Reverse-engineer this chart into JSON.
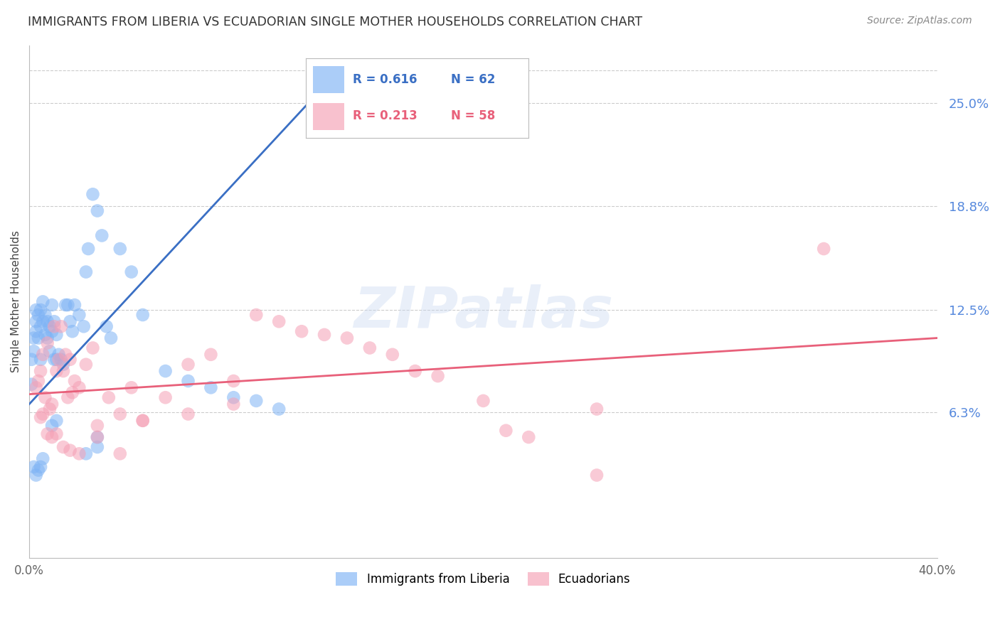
{
  "title": "IMMIGRANTS FROM LIBERIA VS ECUADORIAN SINGLE MOTHER HOUSEHOLDS CORRELATION CHART",
  "source": "Source: ZipAtlas.com",
  "ylabel": "Single Mother Households",
  "ytick_labels": [
    "25.0%",
    "18.8%",
    "12.5%",
    "6.3%"
  ],
  "ytick_values": [
    0.25,
    0.188,
    0.125,
    0.063
  ],
  "xlim": [
    0.0,
    0.4
  ],
  "ylim": [
    -0.025,
    0.285
  ],
  "legend_blue_R": "0.616",
  "legend_blue_N": "62",
  "legend_pink_R": "0.213",
  "legend_pink_N": "58",
  "blue_color": "#7EB3F5",
  "pink_color": "#F5A0B5",
  "blue_line_color": "#3A6FC4",
  "pink_line_color": "#E8607A",
  "blue_line": {
    "x0": 0.0,
    "y0": 0.068,
    "x1": 0.135,
    "y1": 0.268
  },
  "pink_line": {
    "x0": 0.0,
    "y0": 0.074,
    "x1": 0.4,
    "y1": 0.108
  },
  "blue_scatter": {
    "x": [
      0.001,
      0.001,
      0.002,
      0.002,
      0.003,
      0.003,
      0.003,
      0.004,
      0.004,
      0.005,
      0.005,
      0.005,
      0.006,
      0.006,
      0.007,
      0.007,
      0.008,
      0.008,
      0.009,
      0.009,
      0.01,
      0.01,
      0.011,
      0.011,
      0.012,
      0.012,
      0.013,
      0.014,
      0.015,
      0.016,
      0.017,
      0.018,
      0.019,
      0.02,
      0.022,
      0.024,
      0.025,
      0.026,
      0.028,
      0.03,
      0.03,
      0.032,
      0.034,
      0.036,
      0.04,
      0.045,
      0.05,
      0.06,
      0.07,
      0.08,
      0.09,
      0.1,
      0.11,
      0.002,
      0.003,
      0.004,
      0.005,
      0.006,
      0.01,
      0.012,
      0.025,
      0.03
    ],
    "y": [
      0.08,
      0.095,
      0.1,
      0.108,
      0.112,
      0.118,
      0.125,
      0.108,
      0.122,
      0.095,
      0.115,
      0.125,
      0.118,
      0.13,
      0.11,
      0.122,
      0.108,
      0.118,
      0.1,
      0.115,
      0.112,
      0.128,
      0.095,
      0.118,
      0.095,
      0.11,
      0.098,
      0.095,
      0.092,
      0.128,
      0.128,
      0.118,
      0.112,
      0.128,
      0.122,
      0.115,
      0.148,
      0.162,
      0.195,
      0.185,
      0.048,
      0.17,
      0.115,
      0.108,
      0.162,
      0.148,
      0.122,
      0.088,
      0.082,
      0.078,
      0.072,
      0.07,
      0.065,
      0.03,
      0.025,
      0.028,
      0.03,
      0.035,
      0.055,
      0.058,
      0.038,
      0.042
    ]
  },
  "pink_scatter": {
    "x": [
      0.003,
      0.004,
      0.005,
      0.006,
      0.007,
      0.008,
      0.009,
      0.01,
      0.011,
      0.012,
      0.013,
      0.014,
      0.015,
      0.016,
      0.017,
      0.018,
      0.019,
      0.02,
      0.022,
      0.025,
      0.028,
      0.03,
      0.035,
      0.04,
      0.045,
      0.05,
      0.06,
      0.07,
      0.08,
      0.09,
      0.1,
      0.11,
      0.12,
      0.13,
      0.14,
      0.15,
      0.16,
      0.17,
      0.18,
      0.2,
      0.21,
      0.22,
      0.25,
      0.35,
      0.005,
      0.006,
      0.008,
      0.01,
      0.012,
      0.015,
      0.018,
      0.022,
      0.03,
      0.04,
      0.05,
      0.07,
      0.09,
      0.25
    ],
    "y": [
      0.078,
      0.082,
      0.088,
      0.098,
      0.072,
      0.105,
      0.065,
      0.068,
      0.115,
      0.088,
      0.095,
      0.115,
      0.088,
      0.098,
      0.072,
      0.095,
      0.075,
      0.082,
      0.078,
      0.092,
      0.102,
      0.055,
      0.072,
      0.062,
      0.078,
      0.058,
      0.072,
      0.092,
      0.098,
      0.082,
      0.122,
      0.118,
      0.112,
      0.11,
      0.108,
      0.102,
      0.098,
      0.088,
      0.085,
      0.07,
      0.052,
      0.048,
      0.065,
      0.162,
      0.06,
      0.062,
      0.05,
      0.048,
      0.05,
      0.042,
      0.04,
      0.038,
      0.048,
      0.038,
      0.058,
      0.062,
      0.068,
      0.025
    ]
  },
  "watermark": "ZIPatlas",
  "background_color": "#FFFFFF",
  "grid_color": "#CCCCCC"
}
